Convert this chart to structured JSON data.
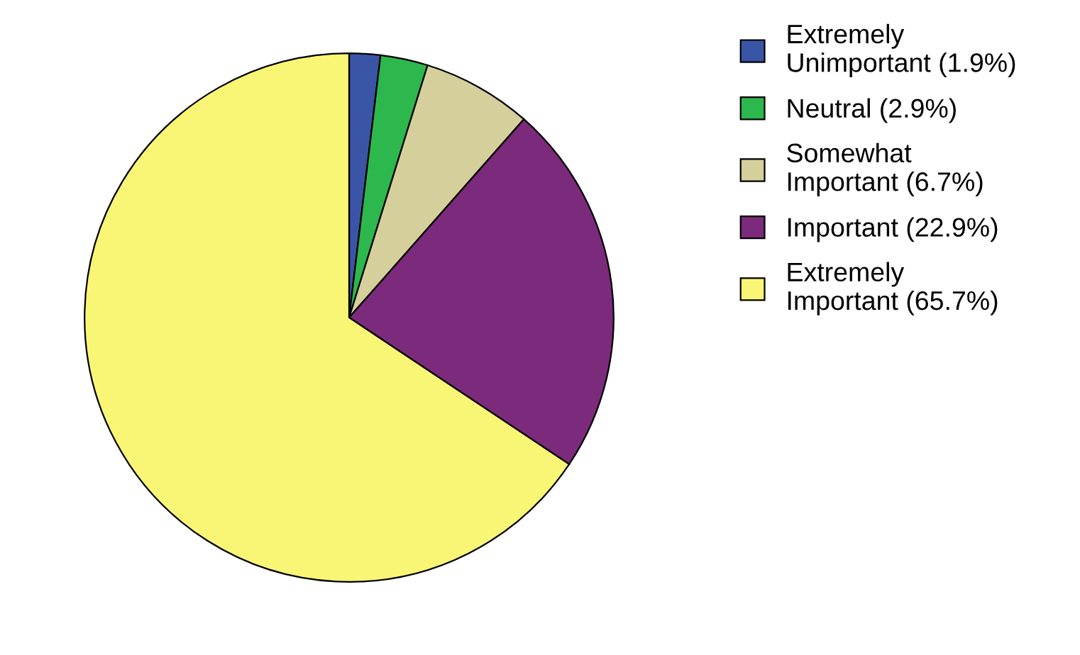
{
  "chart_data": {
    "type": "pie",
    "categories": [
      "Extremely\nUnimportant (1.9%)",
      "Neutral (2.9%)",
      "Somewhat\nImportant (6.7%)",
      "Important (22.9%)",
      "Extremely\nImportant (65.7%)"
    ],
    "values": [
      1.9,
      2.9,
      6.7,
      22.9,
      65.7
    ],
    "colors": [
      "#3a55a6",
      "#2cb84c",
      "#d5cf9b",
      "#7b2a7c",
      "#f9f675"
    ],
    "legend": "right"
  }
}
